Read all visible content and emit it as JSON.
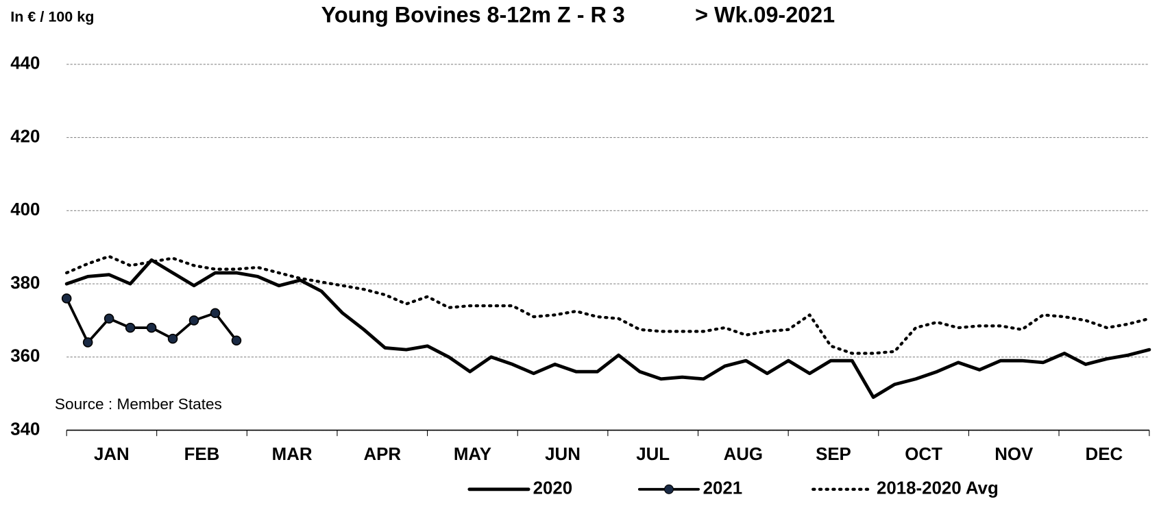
{
  "chart_data": {
    "type": "line",
    "title": "Young Bovines 8-12m Z - R 3",
    "subtitle": "> Wk.09-2021",
    "y_label": "In € / 100 kg",
    "annotation": "Source : Member  States",
    "x": [
      1,
      2,
      3,
      4,
      5,
      6,
      7,
      8,
      9,
      10,
      11,
      12,
      13,
      14,
      15,
      16,
      17,
      18,
      19,
      20,
      21,
      22,
      23,
      24,
      25,
      26,
      27,
      28,
      29,
      30,
      31,
      32,
      33,
      34,
      35,
      36,
      37,
      38,
      39,
      40,
      41,
      42,
      43,
      44,
      45,
      46,
      47,
      48,
      49,
      50,
      51,
      52
    ],
    "xlim": [
      1,
      52
    ],
    "xticks": [
      {
        "value": 3.12,
        "label": "JAN"
      },
      {
        "value": 7.37,
        "label": "FEB"
      },
      {
        "value": 11.62,
        "label": "MAR"
      },
      {
        "value": 15.87,
        "label": "APR"
      },
      {
        "value": 20.12,
        "label": "MAY"
      },
      {
        "value": 24.37,
        "label": "JUN"
      },
      {
        "value": 28.62,
        "label": "JUL"
      },
      {
        "value": 32.87,
        "label": "AUG"
      },
      {
        "value": 37.12,
        "label": "SEP"
      },
      {
        "value": 41.37,
        "label": "OCT"
      },
      {
        "value": 45.62,
        "label": "NOV"
      },
      {
        "value": 49.87,
        "label": "DEC"
      }
    ],
    "ylim": [
      340,
      440
    ],
    "yticks": [
      340,
      360,
      380,
      400,
      420,
      440
    ],
    "grid": true,
    "legend": "bottom",
    "series": [
      {
        "name": "2020",
        "color": "#000000",
        "style": "solid",
        "values": [
          380,
          382,
          382.5,
          380,
          386.5,
          383,
          379.5,
          383,
          383,
          382,
          379.5,
          381,
          378,
          372,
          367.5,
          362.5,
          362,
          363,
          360,
          356,
          360,
          358,
          355.5,
          358,
          356,
          356,
          360.5,
          356,
          354,
          354.5,
          354,
          357.5,
          359,
          355.5,
          359,
          355.5,
          359,
          359,
          349,
          352.5,
          354,
          356,
          358.5,
          356.5,
          359,
          359,
          358.5,
          361,
          358,
          359.5,
          360.5,
          362
        ]
      },
      {
        "name": "2021",
        "color": "#000000",
        "style": "markers",
        "values": [
          376,
          364,
          370.5,
          368,
          368,
          365,
          370,
          372,
          364.5,
          null,
          null,
          null,
          null,
          null,
          null,
          null,
          null,
          null,
          null,
          null,
          null,
          null,
          null,
          null,
          null,
          null,
          null,
          null,
          null,
          null,
          null,
          null,
          null,
          null,
          null,
          null,
          null,
          null,
          null,
          null,
          null,
          null,
          null,
          null,
          null,
          null,
          null,
          null,
          null,
          null,
          null,
          null
        ]
      },
      {
        "name": "2018-2020 Avg",
        "color": "#000000",
        "style": "dotted",
        "values": [
          383,
          385.5,
          387.5,
          385,
          386,
          387,
          385,
          384,
          384,
          384.5,
          383,
          381.5,
          380.5,
          379.5,
          378.5,
          377,
          374.5,
          376.5,
          373.5,
          374,
          374,
          374,
          371,
          371.5,
          372.5,
          371,
          370.5,
          367.5,
          367,
          367,
          367,
          368,
          366,
          367,
          367.5,
          371.5,
          363,
          361,
          361,
          361.5,
          368,
          369.5,
          368,
          368.5,
          368.5,
          367.5,
          371.5,
          371,
          370,
          368,
          369,
          370.5
        ]
      }
    ]
  }
}
